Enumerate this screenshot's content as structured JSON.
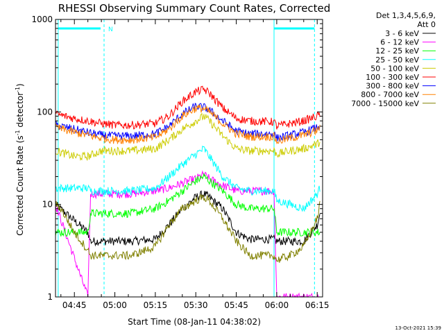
{
  "chart_data": {
    "type": "line",
    "title": "RHESSI Observing Summary Count Rates, Corrected",
    "xlabel": "Start Time (08-Jan-11 04:38:02)",
    "ylabel_main": "Corrected Count Rate (s",
    "ylabel_sup1": "-1",
    "ylabel_mid": " detector",
    "ylabel_sup2": "-1",
    "ylabel_end": ")",
    "y_scale": "log",
    "ylim": [
      1,
      1000
    ],
    "xlim_minutes": [
      38,
      137
    ],
    "x_ticks": [
      {
        "label": "04:45",
        "minutes": 45
      },
      {
        "label": "05:00",
        "minutes": 60
      },
      {
        "label": "05:15",
        "minutes": 75
      },
      {
        "label": "05:30",
        "minutes": 90
      },
      {
        "label": "05:45",
        "minutes": 105
      },
      {
        "label": "06:00",
        "minutes": 120
      },
      {
        "label": "06:15",
        "minutes": 135
      }
    ],
    "y_ticks": [
      {
        "label": "1",
        "value": 1
      },
      {
        "label": "10",
        "value": 10
      },
      {
        "label": "100",
        "value": 100
      },
      {
        "label": "1000",
        "value": 1000
      }
    ],
    "legend_header": [
      "Det 1,3,4,5,6,9,",
      "Att 0"
    ],
    "legend_placement": "right",
    "flag_marker": "N",
    "night_markers_minutes": {
      "solid": [
        39,
        119
      ],
      "dashed": [
        56,
        134
      ]
    },
    "timestamp": "13-Oct-2021 15:39",
    "series": [
      {
        "name": "3 - 6 keV",
        "color": "#000000",
        "x": [
          38,
          50,
          51,
          60,
          66,
          75,
          80,
          85,
          90,
          93,
          95,
          100,
          105,
          110,
          111,
          119,
          120,
          125,
          130,
          135,
          136
        ],
        "y": [
          10,
          5,
          4,
          4,
          4,
          4.2,
          6,
          9,
          12,
          13,
          12,
          9,
          5,
          4.2,
          4.2,
          4.2,
          4,
          4,
          4,
          6,
          8
        ]
      },
      {
        "name": "6 - 12 keV",
        "color": "#ff00ff",
        "x": [
          38,
          50,
          51,
          60,
          66,
          75,
          80,
          85,
          90,
          93,
          95,
          100,
          105,
          110,
          119,
          120,
          125,
          130,
          135,
          136
        ],
        "y": [
          10,
          1,
          13,
          13,
          13,
          14,
          15,
          17,
          19,
          21,
          19,
          16,
          14,
          14,
          14,
          1,
          1,
          1,
          1,
          1
        ]
      },
      {
        "name": "12 - 25 keV",
        "color": "#00ff00",
        "x": [
          38,
          50,
          51,
          60,
          66,
          75,
          80,
          85,
          90,
          93,
          95,
          100,
          105,
          110,
          119,
          120,
          125,
          130,
          135,
          136
        ],
        "y": [
          5,
          5,
          8,
          8,
          8,
          9,
          11,
          14,
          18,
          20,
          18,
          14,
          10,
          9,
          9,
          5,
          5,
          5,
          5,
          5
        ]
      },
      {
        "name": "25 - 50 keV",
        "color": "#00ffff",
        "x": [
          38,
          50,
          51,
          60,
          66,
          75,
          80,
          85,
          90,
          93,
          95,
          100,
          105,
          110,
          119,
          120,
          125,
          130,
          135,
          136
        ],
        "y": [
          15,
          15,
          14,
          14,
          14,
          15,
          20,
          27,
          35,
          40,
          33,
          20,
          15,
          14,
          14,
          11,
          10,
          9,
          13,
          15
        ]
      },
      {
        "name": "50 - 100 keV",
        "color": "#cccc00",
        "x": [
          38,
          45,
          50,
          55,
          60,
          66,
          75,
          80,
          85,
          90,
          93,
          95,
          100,
          105,
          110,
          119,
          120,
          125,
          130,
          135,
          136
        ],
        "y": [
          38,
          33,
          33,
          38,
          38,
          38,
          40,
          50,
          65,
          80,
          90,
          80,
          55,
          40,
          38,
          38,
          35,
          38,
          40,
          45,
          48
        ]
      },
      {
        "name": "100 - 300 keV",
        "color": "#ff0000",
        "x": [
          38,
          45,
          50,
          55,
          60,
          66,
          75,
          80,
          85,
          90,
          93,
          95,
          100,
          105,
          110,
          119,
          120,
          125,
          130,
          135,
          136
        ],
        "y": [
          95,
          85,
          80,
          75,
          72,
          72,
          75,
          90,
          130,
          165,
          175,
          160,
          110,
          85,
          80,
          78,
          70,
          75,
          80,
          90,
          95
        ]
      },
      {
        "name": "300 - 800 keV",
        "color": "#0000ff",
        "x": [
          38,
          45,
          50,
          55,
          60,
          66,
          75,
          80,
          85,
          90,
          93,
          95,
          100,
          105,
          110,
          119,
          120,
          125,
          130,
          135,
          136
        ],
        "y": [
          72,
          65,
          60,
          56,
          55,
          55,
          58,
          70,
          95,
          115,
          112,
          105,
          80,
          62,
          58,
          58,
          52,
          56,
          60,
          68,
          72
        ]
      },
      {
        "name": "800 - 7000 keV",
        "color": "#ff8000",
        "x": [
          38,
          45,
          50,
          55,
          60,
          66,
          75,
          80,
          85,
          90,
          93,
          95,
          100,
          105,
          110,
          119,
          120,
          125,
          130,
          135,
          136
        ],
        "y": [
          68,
          60,
          56,
          52,
          50,
          50,
          53,
          65,
          90,
          110,
          108,
          100,
          75,
          58,
          54,
          54,
          48,
          52,
          56,
          63,
          68
        ]
      },
      {
        "name": "7000 - 15000 keV",
        "color": "#808000",
        "x": [
          38,
          40,
          45,
          50,
          51,
          60,
          66,
          75,
          80,
          85,
          90,
          93,
          95,
          100,
          105,
          110,
          111,
          119,
          120,
          125,
          130,
          135,
          136
        ],
        "y": [
          10,
          9,
          5,
          3.2,
          2.8,
          2.8,
          2.8,
          3.5,
          6,
          9,
          11,
          12,
          11,
          7,
          4,
          2.8,
          2.8,
          2.8,
          2.5,
          2.8,
          3.5,
          7,
          10
        ]
      }
    ]
  }
}
